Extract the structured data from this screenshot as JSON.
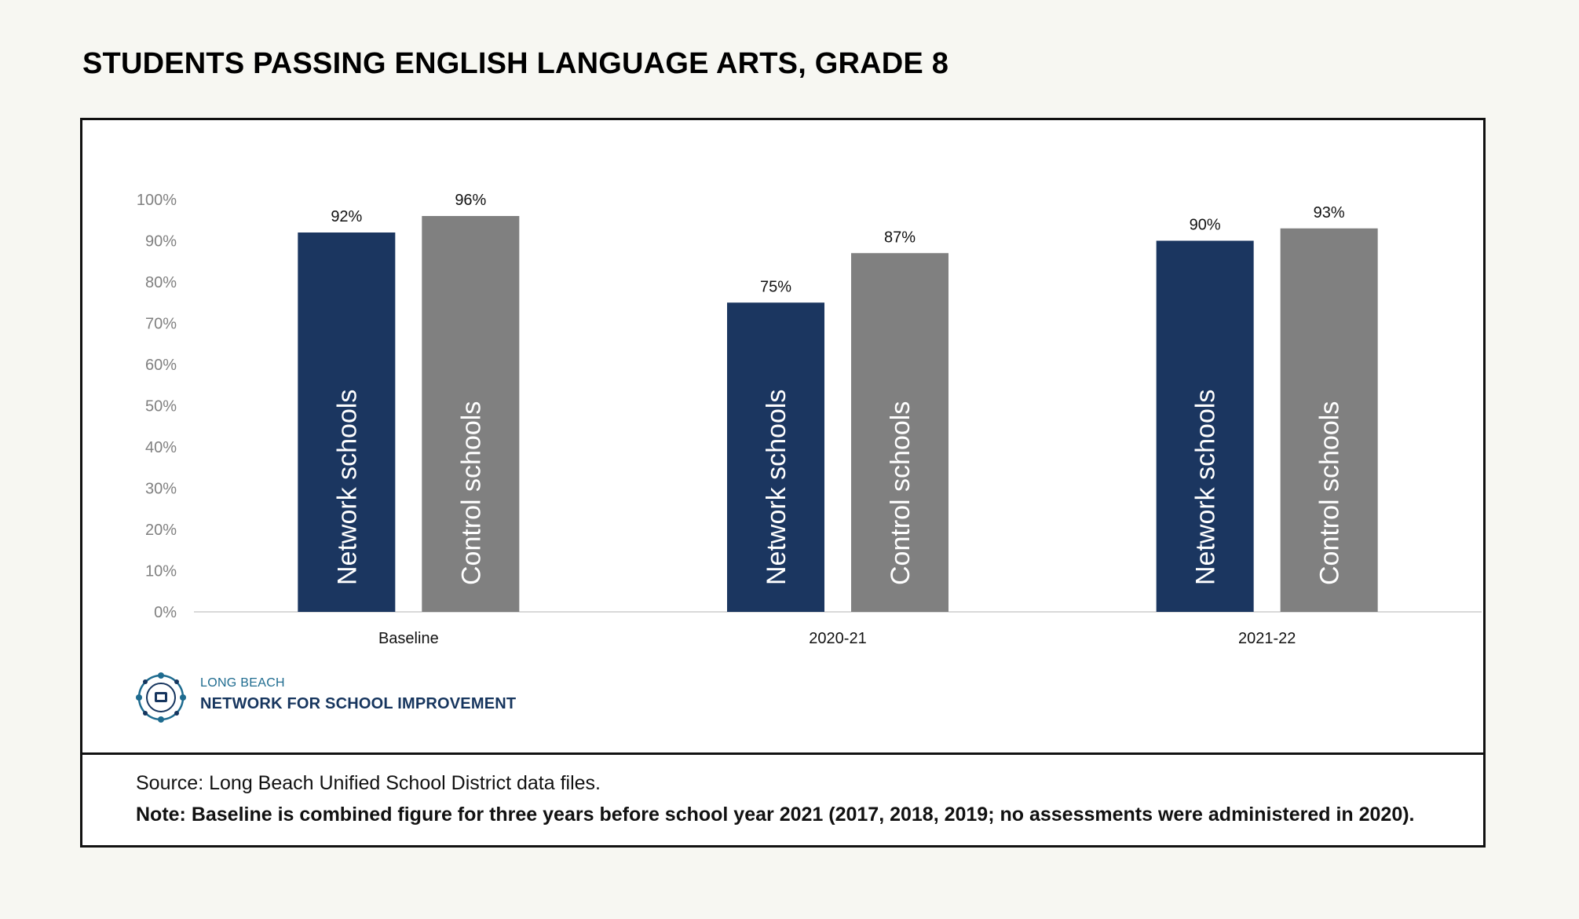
{
  "title": "STUDENTS PASSING ENGLISH LANGUAGE ARTS, GRADE 8",
  "chart_data": {
    "type": "bar",
    "categories": [
      "Baseline",
      "2020-21",
      "2021-22"
    ],
    "series": [
      {
        "name": "Network schools",
        "values": [
          92,
          75,
          90
        ],
        "color": "#1b3660"
      },
      {
        "name": "Control schools",
        "values": [
          96,
          87,
          93
        ],
        "color": "#808080"
      }
    ],
    "data_labels": [
      [
        "92%",
        "75%",
        "90%"
      ],
      [
        "96%",
        "87%",
        "93%"
      ]
    ],
    "ylim": [
      0,
      100
    ],
    "yticks": [
      "0%",
      "10%",
      "20%",
      "30%",
      "40%",
      "50%",
      "60%",
      "70%",
      "80%",
      "90%",
      "100%"
    ],
    "grid": false,
    "xlabel": "",
    "ylabel": ""
  },
  "logo": {
    "line1": "LONG BEACH",
    "line2": "NETWORK FOR SCHOOL IMPROVEMENT"
  },
  "footer": {
    "source": "Source: Long Beach Unified School District data files.",
    "note": "Note: Baseline is combined figure for three years before school year 2021 (2017, 2018, 2019; no assessments were administered in 2020)."
  },
  "colors": {
    "network": "#1b3660",
    "control": "#808080",
    "axis": "#d9d9d9",
    "logo_teal": "#1e6b8f"
  }
}
